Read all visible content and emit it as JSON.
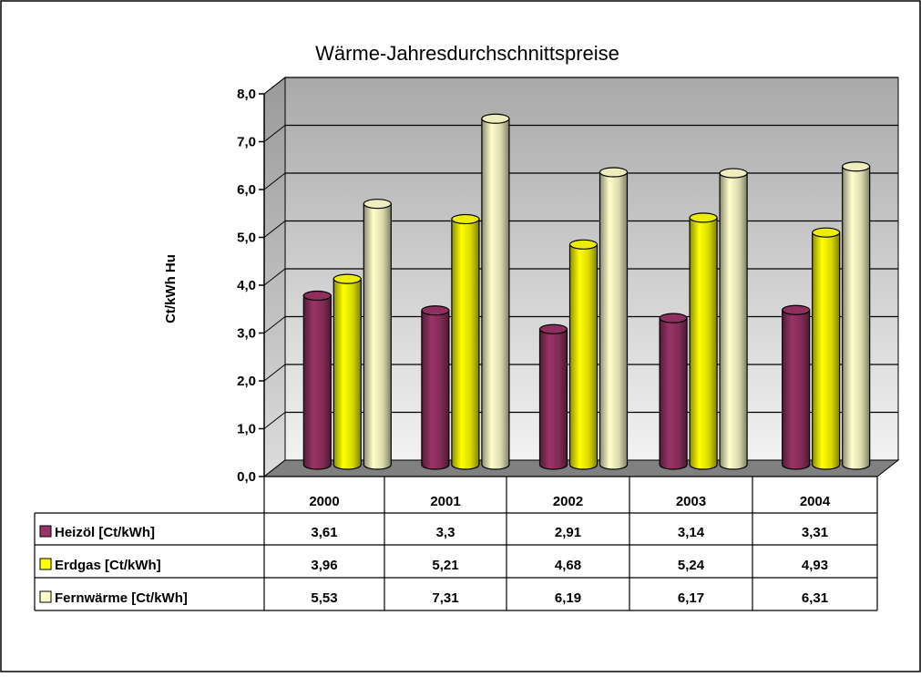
{
  "chart_data": {
    "type": "bar",
    "title": "Wärme-Jahresdurchschnittspreise",
    "ylabel": "Ct/kWh Hu",
    "xlabel": "",
    "ylim": [
      0,
      8
    ],
    "yticks": [
      "0,0",
      "1,0",
      "2,0",
      "3,0",
      "4,0",
      "5,0",
      "6,0",
      "7,0",
      "8,0"
    ],
    "grid": true,
    "legend": "data-table-left",
    "categories": [
      "2000",
      "2001",
      "2002",
      "2003",
      "2004"
    ],
    "series": [
      {
        "name": "Heizöl [Ct/kWh]",
        "values": [
          3.61,
          3.3,
          2.91,
          3.14,
          3.31
        ],
        "labels": [
          "3,61",
          "3,3",
          "2,91",
          "3,14",
          "3,31"
        ],
        "color": "#993366"
      },
      {
        "name": "Erdgas [Ct/kWh]",
        "values": [
          3.96,
          5.21,
          4.68,
          5.24,
          4.93
        ],
        "labels": [
          "3,96",
          "5,21",
          "4,68",
          "5,24",
          "4,93"
        ],
        "color": "#ffff00"
      },
      {
        "name": "Fernwärme [Ct/kWh]",
        "values": [
          5.53,
          7.31,
          6.19,
          6.17,
          6.31
        ],
        "labels": [
          "5,53",
          "7,31",
          "6,19",
          "6,17",
          "6,31"
        ],
        "color": "#ffffcc"
      }
    ]
  },
  "colors": {
    "wall": "#c0c0c0",
    "floor": "#808080",
    "border": "#000000"
  }
}
